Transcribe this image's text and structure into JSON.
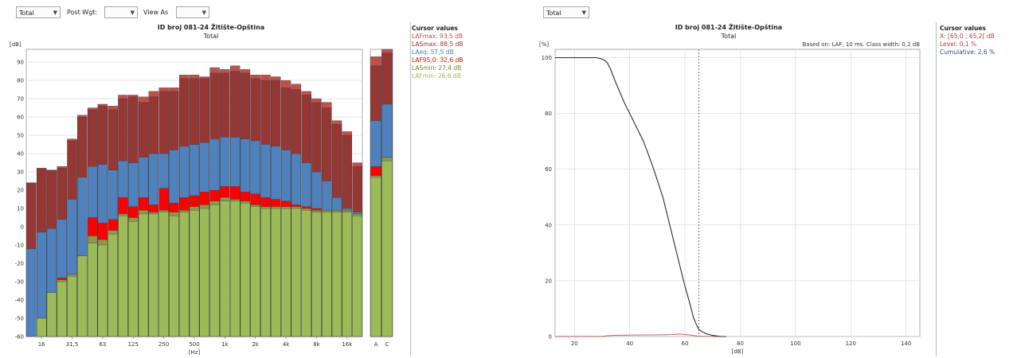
{
  "toolbar_left": {
    "total_select": "Total",
    "post_wgt_label": "Post Wgt:",
    "post_wgt_value": "",
    "view_as_label": "View As",
    "view_as_value": ""
  },
  "toolbar_right": {
    "total_select": "Total"
  },
  "colors": {
    "lafmax": "#c0504d",
    "lasmax": "#953735",
    "leq": "#4f81bd",
    "laf95": "#ff0000",
    "lasmin": "#8a9a4a",
    "lafmin": "#9bbb59",
    "cursor_red": "#b04040",
    "cursor_blue": "#2e4f8a",
    "cursor_label_gray": "#7a9bc7"
  },
  "left_cursor": {
    "header": "Cursor values",
    "items": [
      {
        "text": "LAFmax: 93,5 dB",
        "color": "#c0504d"
      },
      {
        "text": "LASmax: 88,5 dB",
        "color": "#953735"
      },
      {
        "text": "LAeq: 57,5 dB",
        "color": "#4f81bd"
      },
      {
        "text": "LAF95,0: 32,6 dB",
        "color": "#ff0000"
      },
      {
        "text": "LASmin: 27,4 dB",
        "color": "#6f8a30"
      },
      {
        "text": "LAFmin: 26,6 dB",
        "color": "#9bbb59"
      }
    ]
  },
  "right_cursor": {
    "header": "Cursor values",
    "items": [
      {
        "text": "X: [65,0 ; 65,2[ dB",
        "color": "#b04040"
      },
      {
        "text": "Level: 0,1 %",
        "color": "#b04040"
      },
      {
        "text": "Cumulative: 2,6 %",
        "color": "#2e4f8a"
      }
    ]
  },
  "chart_data": [
    {
      "type": "bar",
      "title": "ID broj 081-24 Žitište-Opština",
      "subtitle": "Total",
      "ylabel": "[dB]",
      "xlabel": "[Hz]",
      "ylim": [
        -60,
        97
      ],
      "yticks": [
        -60,
        -50,
        -40,
        -30,
        -20,
        -10,
        0,
        10,
        20,
        30,
        40,
        50,
        60,
        70,
        80,
        90
      ],
      "x_tick_labels": [
        {
          "band": 1,
          "label": "16"
        },
        {
          "band": 4,
          "label": "31,5"
        },
        {
          "band": 7,
          "label": "63"
        },
        {
          "band": 10,
          "label": "125"
        },
        {
          "band": 13,
          "label": "250"
        },
        {
          "band": 16,
          "label": "500"
        },
        {
          "band": 19,
          "label": "1k"
        },
        {
          "band": 22,
          "label": "2k"
        },
        {
          "band": 25,
          "label": "4k"
        },
        {
          "band": 28,
          "label": "8k"
        },
        {
          "band": 31,
          "label": "16k"
        }
      ],
      "categories": [
        "12.5",
        "16",
        "20",
        "25",
        "31.5",
        "40",
        "50",
        "63",
        "80",
        "100",
        "125",
        "160",
        "200",
        "250",
        "315",
        "400",
        "500",
        "630",
        "800",
        "1k",
        "1.25k",
        "1.6k",
        "2k",
        "2.5k",
        "3.15k",
        "4k",
        "5k",
        "6.3k",
        "8k",
        "10k",
        "12.5k",
        "16k",
        "20k"
      ],
      "series": [
        {
          "name": "LAFmax",
          "values": [
            24,
            32,
            31,
            33,
            48,
            61,
            65,
            67,
            66,
            72,
            72,
            71,
            74,
            76,
            76,
            83,
            83,
            82,
            87,
            86,
            88,
            86,
            83,
            83,
            82,
            80,
            78,
            74,
            70,
            68,
            58,
            52,
            35
          ]
        },
        {
          "name": "LASmax",
          "values": [
            24,
            32,
            31,
            32,
            47,
            60,
            64,
            66,
            64,
            70,
            71,
            68,
            71,
            74,
            74,
            81,
            81,
            81,
            84,
            84,
            85,
            84,
            81,
            80,
            80,
            76,
            75,
            72,
            68,
            65,
            56,
            50,
            33
          ]
        },
        {
          "name": "LAeq",
          "values": [
            -12,
            -3,
            -1,
            4,
            15,
            27,
            33,
            34,
            31,
            36,
            35,
            38,
            40,
            40,
            42,
            44,
            45,
            46,
            48,
            49,
            49,
            48,
            47,
            45,
            44,
            42,
            40,
            35,
            30,
            25,
            16,
            10,
            8
          ]
        },
        {
          "name": "LAF95,0",
          "values": [
            -60,
            -50,
            -36,
            -28,
            -26,
            -16,
            5,
            2,
            4,
            16,
            11,
            16,
            12,
            21,
            13,
            16,
            17,
            19,
            20,
            22,
            22,
            19,
            18,
            16,
            15,
            14,
            12,
            11,
            10,
            9,
            9,
            8,
            7
          ]
        },
        {
          "name": "LASmin",
          "values": [
            -60,
            -50,
            -36,
            -29,
            -26,
            -16,
            -5,
            -7,
            -2,
            7,
            5,
            9,
            8,
            9,
            8,
            9,
            11,
            12,
            14,
            16,
            15,
            14,
            12,
            11,
            11,
            11,
            11,
            10,
            9,
            9,
            9,
            9,
            7
          ]
        },
        {
          "name": "LAFmin",
          "values": [
            -60,
            -50,
            -36,
            -30,
            -27,
            -16,
            -9,
            -10,
            -4,
            6,
            3,
            7,
            7,
            8,
            6,
            8,
            9,
            10,
            12,
            14,
            14,
            13,
            11,
            10,
            10,
            10,
            10,
            9,
            8,
            8,
            8,
            8,
            6
          ]
        }
      ],
      "overall": {
        "categories": [
          "A",
          "C"
        ],
        "LAFmax": [
          93,
          97
        ],
        "LASmax": [
          88,
          95
        ],
        "LAeq": [
          58,
          67
        ],
        "LAF95,0": [
          33,
          38
        ],
        "LASmin": [
          28,
          38
        ],
        "LAFmin": [
          27,
          36
        ]
      },
      "grid": true
    },
    {
      "type": "line",
      "title": "ID broj 081-24 Žitište-Opština",
      "subtitle": "Total",
      "note": "Based on: LAF, 10 ms. Class width: 0,2 dB",
      "ylabel": "[%]",
      "xlabel": "[dB]",
      "xlim": [
        13,
        145
      ],
      "ylim": [
        0,
        103
      ],
      "xticks": [
        20,
        40,
        60,
        80,
        100,
        120,
        140
      ],
      "yticks": [
        0,
        20,
        40,
        60,
        80,
        100
      ],
      "cursor_x": 65,
      "series": [
        {
          "name": "Cumulative",
          "x": [
            13,
            20,
            25,
            28,
            30,
            31,
            32,
            33,
            35,
            38,
            40,
            42,
            45,
            48,
            50,
            52,
            55,
            58,
            60,
            62,
            63,
            64,
            65,
            66,
            68,
            70,
            72,
            73,
            75
          ],
          "y": [
            100,
            100,
            100,
            100,
            99.5,
            99,
            98,
            96,
            91,
            84,
            80,
            76,
            70,
            62,
            56,
            50,
            38,
            26,
            18,
            11,
            7,
            4.5,
            2.6,
            1.8,
            0.9,
            0.4,
            0.1,
            0,
            0
          ]
        },
        {
          "name": "Level",
          "x": [
            13,
            30,
            32,
            35,
            40,
            45,
            50,
            55,
            58,
            60,
            62,
            65,
            68,
            70,
            72
          ],
          "y": [
            0,
            0,
            0.3,
            0.45,
            0.5,
            0.55,
            0.6,
            0.65,
            0.9,
            0.7,
            0.5,
            0.1,
            0.05,
            0,
            0
          ]
        }
      ],
      "grid": true
    }
  ]
}
